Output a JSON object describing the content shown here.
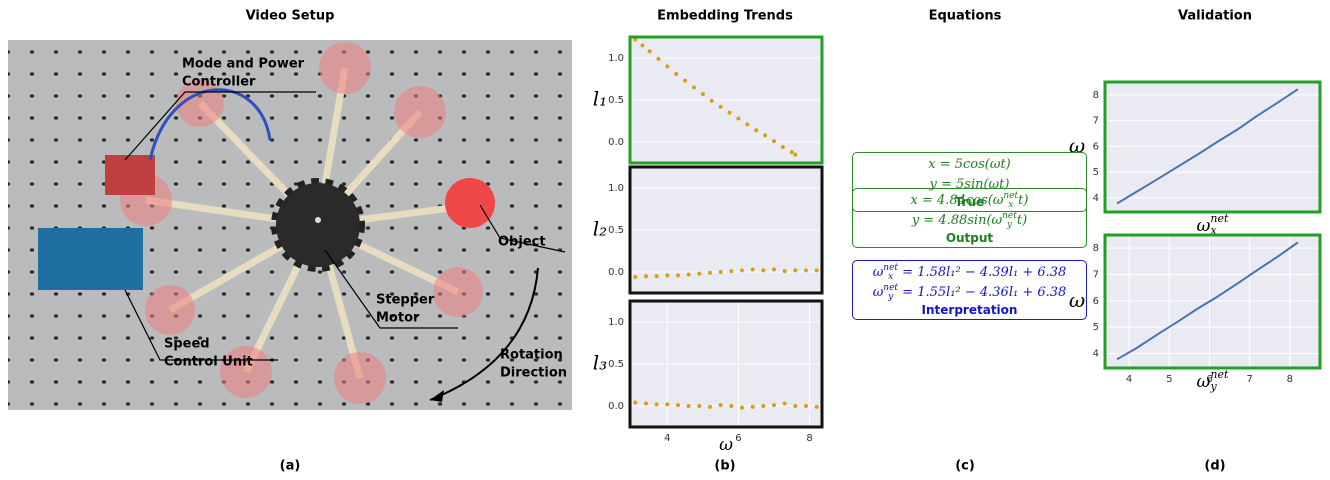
{
  "panels": {
    "titles": [
      "Video Setup",
      "Embedding Trends",
      "Equations",
      "Validation"
    ],
    "captions": [
      "(a)",
      "(b)",
      "(c)",
      "(d)"
    ]
  },
  "photo": {
    "labels": [
      [
        "Mode and Power",
        "Controller"
      ],
      [
        "Object"
      ],
      [
        "Stepper",
        "Motor"
      ],
      [
        "Speed",
        "Control Unit"
      ],
      [
        "Rotation",
        "Direction"
      ]
    ]
  },
  "equations": [
    {
      "lines": [
        {
          "pre": "x = 5cos(ωt)"
        },
        {
          "pre": "y = 5sin(ωt)"
        }
      ],
      "label": "True"
    },
    {
      "lines": [
        {
          "pre": "x = 4.84cos(ω",
          "sub": "x",
          "sup": "net",
          "post": "t)"
        },
        {
          "pre": "y = 4.88sin(ω",
          "sub": "y",
          "sup": "net",
          "post": "t)"
        }
      ],
      "label": "Output"
    },
    {
      "lines": [
        {
          "pre": "ω",
          "sub": "x",
          "sup": "net",
          "post": " = 1.58l₁² − 4.39l₁ + 6.38"
        },
        {
          "pre": "ω",
          "sub": "y",
          "sup": "net",
          "post": " = 1.55l₁² − 4.36l₁ + 6.38"
        }
      ],
      "label": "Interpretation"
    }
  ],
  "chart_data": [
    {
      "type": "scatter",
      "ylabel": "l₁",
      "frame_color": "#22a022",
      "color": "#d4a017",
      "grid": true,
      "xlim": [
        2.95,
        8.35
      ],
      "ylim": [
        -0.25,
        1.25
      ],
      "yticks": [
        {
          "value": 0,
          "label": "0.0"
        },
        {
          "value": 0.5,
          "label": "0.5"
        },
        {
          "value": 1,
          "label": "1.0"
        }
      ],
      "x": [
        3.1,
        3.3,
        3.5,
        3.75,
        4.0,
        4.25,
        4.5,
        4.75,
        5.0,
        5.25,
        5.5,
        5.75,
        6.0,
        6.25,
        6.5,
        6.75,
        7.0,
        7.25,
        7.5,
        7.6
      ],
      "values": [
        1.22,
        1.15,
        1.08,
        0.99,
        0.9,
        0.81,
        0.73,
        0.65,
        0.57,
        0.49,
        0.42,
        0.35,
        0.28,
        0.21,
        0.14,
        0.08,
        0.01,
        -0.06,
        -0.12,
        -0.15
      ]
    },
    {
      "type": "scatter",
      "ylabel": "l₂",
      "frame_color": "#111111",
      "color": "#d4a017",
      "grid": true,
      "xlim": [
        2.95,
        8.35
      ],
      "ylim": [
        -0.25,
        1.25
      ],
      "yticks": [
        {
          "value": 0,
          "label": "0.0"
        },
        {
          "value": 0.5,
          "label": "0.5"
        },
        {
          "value": 1,
          "label": "1.0"
        }
      ],
      "x": [
        3.1,
        3.4,
        3.7,
        4.0,
        4.3,
        4.6,
        4.9,
        5.2,
        5.5,
        5.8,
        6.1,
        6.4,
        6.7,
        7.0,
        7.3,
        7.6,
        7.9,
        8.2
      ],
      "values": [
        -0.06,
        -0.05,
        -0.05,
        -0.04,
        -0.04,
        -0.03,
        -0.02,
        -0.01,
        0.0,
        0.01,
        0.02,
        0.03,
        0.02,
        0.03,
        0.01,
        0.02,
        0.02,
        0.02
      ]
    },
    {
      "type": "scatter",
      "ylabel": "l₃",
      "xlabel": "ω",
      "frame_color": "#111111",
      "color": "#d4a017",
      "grid": true,
      "xlim": [
        2.95,
        8.35
      ],
      "ylim": [
        -0.25,
        1.25
      ],
      "yticks": [
        {
          "value": 0,
          "label": "0.0"
        },
        {
          "value": 0.5,
          "label": "0.5"
        },
        {
          "value": 1,
          "label": "1.0"
        }
      ],
      "xticks": [
        4,
        6,
        8
      ],
      "x": [
        3.1,
        3.4,
        3.7,
        4.0,
        4.3,
        4.6,
        4.9,
        5.2,
        5.5,
        5.8,
        6.1,
        6.4,
        6.7,
        7.0,
        7.3,
        7.6,
        7.9,
        8.2
      ],
      "values": [
        0.04,
        0.03,
        0.02,
        0.02,
        0.01,
        0.0,
        0.0,
        -0.01,
        0.01,
        0.0,
        -0.02,
        -0.01,
        0.0,
        0.01,
        0.03,
        0.0,
        0.0,
        -0.01
      ]
    },
    {
      "type": "line",
      "ylabel": "ω",
      "xlabel": "ω",
      "xlabel_sub": "x",
      "xlabel_sup": "net",
      "frame_color": "#22a022",
      "color": "#4c72b0",
      "grid": true,
      "xlim": [
        3.4,
        8.75
      ],
      "ylim": [
        3.45,
        8.5
      ],
      "yticks": [
        4,
        5,
        6,
        7,
        8
      ],
      "x": [
        3.7,
        4.2,
        4.7,
        5.2,
        5.7,
        6.2,
        6.7,
        7.2,
        7.7,
        8.2
      ],
      "values": [
        3.78,
        4.25,
        4.72,
        5.2,
        5.68,
        6.18,
        6.66,
        7.2,
        7.7,
        8.22
      ]
    },
    {
      "type": "line",
      "ylabel": "ω",
      "xlabel": "ω",
      "xlabel_sub": "y",
      "xlabel_sup": "net",
      "frame_color": "#22a022",
      "color": "#4c72b0",
      "grid": true,
      "xlim": [
        3.4,
        8.75
      ],
      "ylim": [
        3.45,
        8.5
      ],
      "yticks": [
        4,
        5,
        6,
        7,
        8
      ],
      "xticks": [
        4,
        5,
        6,
        7,
        8
      ],
      "x": [
        3.7,
        4.2,
        4.7,
        5.2,
        5.7,
        6.2,
        6.7,
        7.2,
        7.7,
        8.2
      ],
      "values": [
        3.78,
        4.22,
        4.72,
        5.2,
        5.7,
        6.16,
        6.66,
        7.18,
        7.68,
        8.22
      ]
    }
  ]
}
